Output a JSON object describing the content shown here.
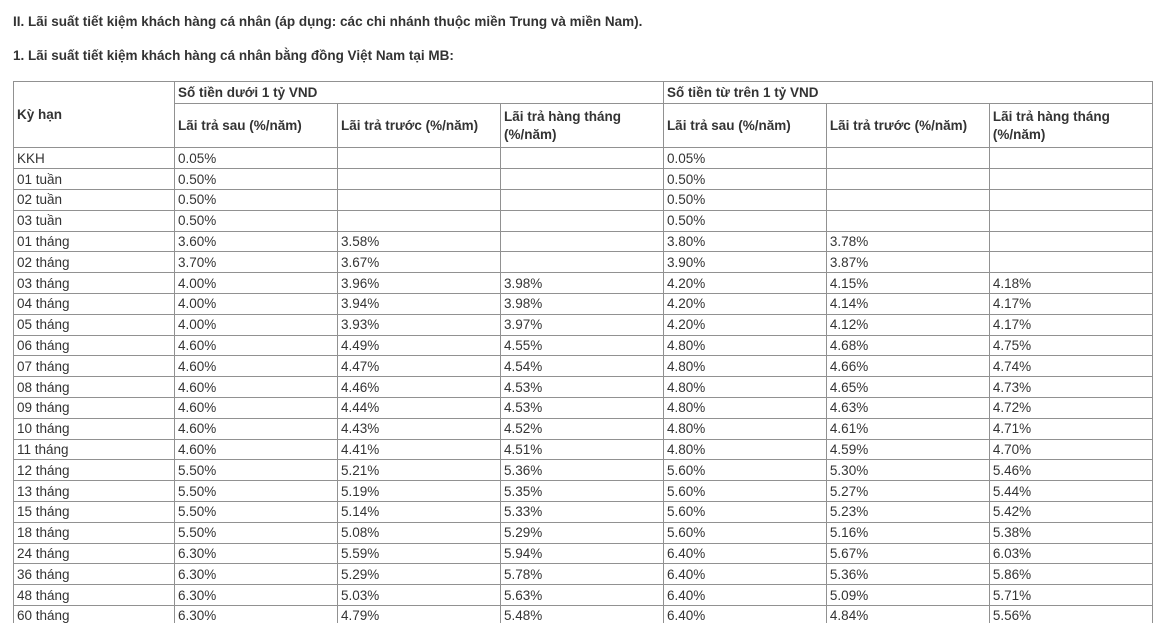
{
  "page": {
    "heading_section": "II. Lãi suất tiết kiệm khách hàng cá nhân (áp dụng: các chi nhánh thuộc miền Trung và miền Nam).",
    "heading_table": "1. Lãi suất tiết kiệm khách hàng cá nhân bằng đồng Việt Nam tại MB:"
  },
  "table": {
    "term_header": "Kỳ hạn",
    "group_headers": [
      "Số tiền dưới 1 tỷ VND",
      "Số tiền từ trên 1 tỷ VND"
    ],
    "sub_headers": [
      "Lãi trả sau (%/năm)",
      "Lãi trả trước (%/năm)",
      "Lãi trả hàng tháng (%/năm)"
    ],
    "rows": [
      {
        "term": "KKH",
        "values": [
          "0.05%",
          "",
          "",
          "0.05%",
          "",
          ""
        ]
      },
      {
        "term": "01 tuần",
        "values": [
          "0.50%",
          "",
          "",
          "0.50%",
          "",
          ""
        ]
      },
      {
        "term": "02 tuần",
        "values": [
          "0.50%",
          "",
          "",
          "0.50%",
          "",
          ""
        ]
      },
      {
        "term": "03 tuần",
        "values": [
          "0.50%",
          "",
          "",
          "0.50%",
          "",
          ""
        ]
      },
      {
        "term": "01 tháng",
        "values": [
          "3.60%",
          "3.58%",
          "",
          "3.80%",
          "3.78%",
          ""
        ]
      },
      {
        "term": "02 tháng",
        "values": [
          "3.70%",
          "3.67%",
          "",
          "3.90%",
          "3.87%",
          ""
        ]
      },
      {
        "term": "03 tháng",
        "values": [
          "4.00%",
          "3.96%",
          "3.98%",
          "4.20%",
          "4.15%",
          "4.18%"
        ]
      },
      {
        "term": "04 tháng",
        "values": [
          "4.00%",
          "3.94%",
          "3.98%",
          "4.20%",
          "4.14%",
          "4.17%"
        ]
      },
      {
        "term": "05 tháng",
        "values": [
          "4.00%",
          "3.93%",
          "3.97%",
          "4.20%",
          "4.12%",
          "4.17%"
        ]
      },
      {
        "term": "06 tháng",
        "values": [
          "4.60%",
          "4.49%",
          "4.55%",
          "4.80%",
          "4.68%",
          "4.75%"
        ]
      },
      {
        "term": "07 tháng",
        "values": [
          "4.60%",
          "4.47%",
          "4.54%",
          "4.80%",
          "4.66%",
          "4.74%"
        ]
      },
      {
        "term": "08 tháng",
        "values": [
          "4.60%",
          "4.46%",
          "4.53%",
          "4.80%",
          "4.65%",
          "4.73%"
        ]
      },
      {
        "term": "09 tháng",
        "values": [
          "4.60%",
          "4.44%",
          "4.53%",
          "4.80%",
          "4.63%",
          "4.72%"
        ]
      },
      {
        "term": "10 tháng",
        "values": [
          "4.60%",
          "4.43%",
          "4.52%",
          "4.80%",
          "4.61%",
          "4.71%"
        ]
      },
      {
        "term": "11 tháng",
        "values": [
          "4.60%",
          "4.41%",
          "4.51%",
          "4.80%",
          "4.59%",
          "4.70%"
        ]
      },
      {
        "term": "12 tháng",
        "values": [
          "5.50%",
          "5.21%",
          "5.36%",
          "5.60%",
          "5.30%",
          "5.46%"
        ]
      },
      {
        "term": "13 tháng",
        "values": [
          "5.50%",
          "5.19%",
          "5.35%",
          "5.60%",
          "5.27%",
          "5.44%"
        ]
      },
      {
        "term": "15 tháng",
        "values": [
          "5.50%",
          "5.14%",
          "5.33%",
          "5.60%",
          "5.23%",
          "5.42%"
        ]
      },
      {
        "term": "18 tháng",
        "values": [
          "5.50%",
          "5.08%",
          "5.29%",
          "5.60%",
          "5.16%",
          "5.38%"
        ]
      },
      {
        "term": "24 tháng",
        "values": [
          "6.30%",
          "5.59%",
          "5.94%",
          "6.40%",
          "5.67%",
          "6.03%"
        ]
      },
      {
        "term": "36 tháng",
        "values": [
          "6.30%",
          "5.29%",
          "5.78%",
          "6.40%",
          "5.36%",
          "5.86%"
        ]
      },
      {
        "term": "48 tháng",
        "values": [
          "6.30%",
          "5.03%",
          "5.63%",
          "6.40%",
          "5.09%",
          "5.71%"
        ]
      },
      {
        "term": "60 tháng",
        "values": [
          "6.30%",
          "4.79%",
          "5.48%",
          "6.40%",
          "4.84%",
          "5.56%"
        ]
      }
    ]
  },
  "colors": {
    "text": "#333333",
    "table_border": "#919191",
    "background": "#ffffff"
  }
}
